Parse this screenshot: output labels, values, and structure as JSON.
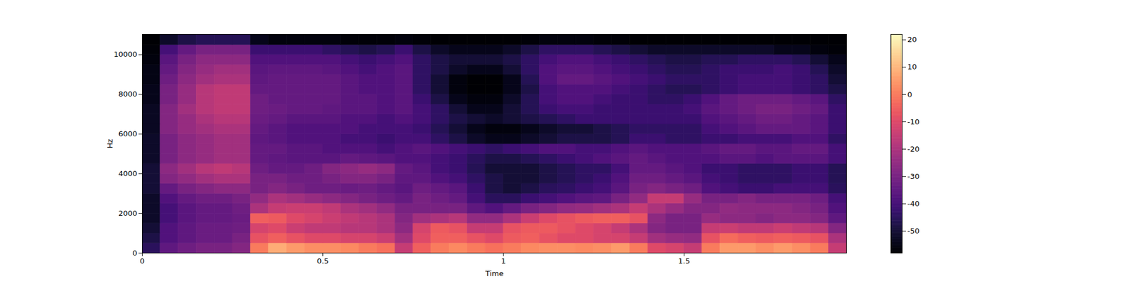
{
  "chart_data": {
    "type": "heatmap",
    "x_label": "Time",
    "y_label": "Hz",
    "xlim": [
      0,
      1.95
    ],
    "xticks": [
      0,
      0.5,
      1,
      1.5
    ],
    "ylim": [
      0,
      11025
    ],
    "yticks": [
      0,
      2000,
      4000,
      6000,
      8000,
      10000
    ],
    "xbins": [
      0,
      0.05,
      0.1,
      0.15,
      0.2,
      0.25,
      0.3,
      0.35,
      0.4,
      0.45,
      0.5,
      0.55,
      0.6,
      0.65,
      0.7,
      0.75,
      0.8,
      0.85,
      0.9,
      0.95,
      1.0,
      1.05,
      1.1,
      1.15,
      1.2,
      1.25,
      1.3,
      1.35,
      1.4,
      1.45,
      1.5,
      1.55,
      1.6,
      1.65,
      1.7,
      1.75,
      1.8,
      1.85,
      1.9,
      1.95
    ],
    "ybins": [
      0,
      500,
      1000,
      1500,
      2000,
      2500,
      3000,
      3500,
      4000,
      4500,
      5000,
      5500,
      6000,
      6500,
      7000,
      7500,
      8000,
      8500,
      9000,
      9500,
      10000,
      10500,
      11025
    ],
    "cells": [
      [
        -45,
        -35,
        -32,
        -30,
        -30,
        -28,
        0,
        8,
        5,
        3,
        3,
        2,
        0,
        -2,
        -15,
        -5,
        0,
        2,
        0,
        -2,
        0,
        2,
        3,
        3,
        2,
        3,
        5,
        0,
        -10,
        -12,
        -15,
        0,
        5,
        5,
        3,
        5,
        3,
        0,
        -15
      ],
      [
        -48,
        -38,
        -35,
        -33,
        -33,
        -30,
        -8,
        -5,
        -8,
        -10,
        -10,
        -12,
        -12,
        -14,
        -22,
        -10,
        -5,
        -5,
        -8,
        -10,
        -6,
        -5,
        -8,
        -10,
        -10,
        -12,
        -12,
        -15,
        -22,
        -24,
        -25,
        -8,
        -3,
        -5,
        -6,
        -5,
        -6,
        -8,
        -20
      ],
      [
        -50,
        -38,
        -35,
        -33,
        -33,
        -32,
        -12,
        -10,
        -14,
        -16,
        -16,
        -18,
        -18,
        -20,
        -26,
        -12,
        -6,
        -8,
        -15,
        -15,
        -8,
        -6,
        -6,
        -8,
        -10,
        -12,
        -15,
        -20,
        -28,
        -30,
        -30,
        -15,
        -14,
        -16,
        -16,
        -14,
        -16,
        -18,
        -28
      ],
      [
        -52,
        -40,
        -36,
        -34,
        -34,
        -33,
        -5,
        -6,
        -10,
        -12,
        -14,
        -16,
        -18,
        -20,
        -28,
        -22,
        -20,
        -18,
        -25,
        -25,
        -20,
        -14,
        -10,
        -8,
        -6,
        -5,
        -5,
        -8,
        -26,
        -30,
        -30,
        -24,
        -26,
        -26,
        -28,
        -26,
        -26,
        -28,
        -35
      ],
      [
        -52,
        -40,
        -36,
        -34,
        -34,
        -32,
        -20,
        -15,
        -14,
        -14,
        -16,
        -20,
        -22,
        -25,
        -30,
        -30,
        -30,
        -30,
        -35,
        -38,
        -34,
        -30,
        -28,
        -25,
        -24,
        -22,
        -20,
        -15,
        -20,
        -24,
        -28,
        -28,
        -25,
        -26,
        -26,
        -26,
        -28,
        -30,
        -38
      ],
      [
        -52,
        -38,
        -34,
        -32,
        -32,
        -30,
        -25,
        -20,
        -22,
        -24,
        -26,
        -28,
        -30,
        -32,
        -34,
        -30,
        -32,
        -34,
        -40,
        -45,
        -45,
        -42,
        -40,
        -38,
        -36,
        -35,
        -30,
        -25,
        -15,
        -15,
        -24,
        -30,
        -30,
        -28,
        -30,
        -30,
        -30,
        -32,
        -40
      ],
      [
        -50,
        -34,
        -30,
        -28,
        -26,
        -26,
        -30,
        -28,
        -30,
        -32,
        -32,
        -33,
        -32,
        -34,
        -36,
        -32,
        -34,
        -36,
        -42,
        -48,
        -50,
        -48,
        -45,
        -44,
        -42,
        -40,
        -36,
        -30,
        -28,
        -30,
        -32,
        -38,
        -40,
        -42,
        -42,
        -40,
        -40,
        -40,
        -45
      ],
      [
        -50,
        -28,
        -25,
        -22,
        -20,
        -20,
        -30,
        -30,
        -32,
        -32,
        -30,
        -28,
        -28,
        -30,
        -35,
        -35,
        -38,
        -40,
        -44,
        -48,
        -50,
        -50,
        -48,
        -46,
        -44,
        -42,
        -38,
        -32,
        -32,
        -34,
        -36,
        -40,
        -42,
        -44,
        -44,
        -44,
        -42,
        -42,
        -46
      ],
      [
        -50,
        -26,
        -22,
        -18,
        -16,
        -18,
        -32,
        -34,
        -34,
        -32,
        -28,
        -26,
        -24,
        -26,
        -34,
        -36,
        -40,
        -42,
        -46,
        -50,
        -50,
        -50,
        -48,
        -46,
        -44,
        -44,
        -40,
        -34,
        -34,
        -36,
        -38,
        -42,
        -42,
        -44,
        -44,
        -44,
        -42,
        -42,
        -46
      ],
      [
        -52,
        -30,
        -26,
        -24,
        -22,
        -22,
        -34,
        -35,
        -36,
        -36,
        -36,
        -34,
        -35,
        -36,
        -38,
        -38,
        -40,
        -42,
        -45,
        -48,
        -48,
        -46,
        -44,
        -42,
        -40,
        -38,
        -36,
        -34,
        -36,
        -38,
        -38,
        -38,
        -36,
        -36,
        -38,
        -36,
        -36,
        -36,
        -40
      ],
      [
        -52,
        -30,
        -26,
        -24,
        -22,
        -22,
        -34,
        -34,
        -36,
        -36,
        -38,
        -38,
        -38,
        -40,
        -38,
        -36,
        -38,
        -40,
        -42,
        -44,
        -42,
        -40,
        -38,
        -38,
        -40,
        -40,
        -38,
        -36,
        -38,
        -38,
        -38,
        -36,
        -34,
        -34,
        -36,
        -36,
        -34,
        -34,
        -40
      ],
      [
        -52,
        -30,
        -26,
        -24,
        -22,
        -22,
        -35,
        -36,
        -38,
        -38,
        -38,
        -40,
        -40,
        -42,
        -40,
        -40,
        -44,
        -48,
        -52,
        -54,
        -54,
        -52,
        -50,
        -48,
        -48,
        -48,
        -46,
        -42,
        -42,
        -44,
        -44,
        -42,
        -42,
        -40,
        -40,
        -40,
        -38,
        -38,
        -44
      ],
      [
        -53,
        -28,
        -24,
        -22,
        -20,
        -20,
        -34,
        -36,
        -38,
        -38,
        -38,
        -38,
        -40,
        -40,
        -40,
        -42,
        -46,
        -50,
        -54,
        -56,
        -56,
        -54,
        -52,
        -50,
        -50,
        -48,
        -46,
        -44,
        -44,
        -44,
        -44,
        -40,
        -38,
        -36,
        -34,
        -34,
        -34,
        -36,
        -42
      ],
      [
        -53,
        -28,
        -24,
        -20,
        -18,
        -18,
        -33,
        -34,
        -36,
        -36,
        -36,
        -38,
        -38,
        -40,
        -38,
        -40,
        -44,
        -48,
        -50,
        -52,
        -50,
        -48,
        -46,
        -44,
        -42,
        -42,
        -42,
        -42,
        -42,
        -42,
        -42,
        -38,
        -36,
        -34,
        -32,
        -32,
        -34,
        -36,
        -42
      ],
      [
        -53,
        -28,
        -22,
        -18,
        -16,
        -16,
        -32,
        -33,
        -34,
        -34,
        -35,
        -36,
        -36,
        -38,
        -36,
        -40,
        -44,
        -50,
        -54,
        -54,
        -50,
        -46,
        -42,
        -40,
        -40,
        -42,
        -42,
        -42,
        -42,
        -42,
        -40,
        -36,
        -34,
        -32,
        -30,
        -30,
        -32,
        -34,
        -42
      ],
      [
        -54,
        -30,
        -24,
        -18,
        -16,
        -16,
        -32,
        -34,
        -34,
        -34,
        -34,
        -36,
        -36,
        -38,
        -36,
        -42,
        -48,
        -54,
        -56,
        -56,
        -52,
        -46,
        -40,
        -38,
        -38,
        -40,
        -42,
        -42,
        -44,
        -44,
        -42,
        -38,
        -34,
        -32,
        -32,
        -32,
        -34,
        -36,
        -44
      ],
      [
        -54,
        -30,
        -24,
        -18,
        -16,
        -16,
        -34,
        -34,
        -34,
        -34,
        -34,
        -36,
        -38,
        -38,
        -36,
        -44,
        -50,
        -56,
        -58,
        -58,
        -54,
        -48,
        -40,
        -38,
        -38,
        -38,
        -40,
        -42,
        -44,
        -46,
        -46,
        -44,
        -42,
        -40,
        -40,
        -40,
        -42,
        -44,
        -48
      ],
      [
        -55,
        -32,
        -26,
        -22,
        -20,
        -20,
        -35,
        -34,
        -34,
        -34,
        -34,
        -36,
        -38,
        -38,
        -36,
        -44,
        -50,
        -56,
        -58,
        -58,
        -54,
        -46,
        -38,
        -34,
        -34,
        -36,
        -38,
        -40,
        -42,
        -44,
        -44,
        -44,
        -42,
        -40,
        -40,
        -40,
        -42,
        -44,
        -50
      ],
      [
        -55,
        -34,
        -28,
        -24,
        -22,
        -22,
        -36,
        -35,
        -35,
        -35,
        -36,
        -38,
        -40,
        -38,
        -36,
        -44,
        -48,
        -52,
        -54,
        -54,
        -50,
        -44,
        -38,
        -36,
        -36,
        -38,
        -40,
        -42,
        -44,
        -46,
        -46,
        -44,
        -42,
        -42,
        -42,
        -40,
        -42,
        -46,
        -52
      ],
      [
        -56,
        -36,
        -30,
        -26,
        -26,
        -26,
        -38,
        -38,
        -38,
        -38,
        -38,
        -40,
        -42,
        -40,
        -38,
        -44,
        -48,
        -50,
        -50,
        -50,
        -48,
        -44,
        -40,
        -38,
        -38,
        -40,
        -42,
        -44,
        -46,
        -48,
        -48,
        -46,
        -46,
        -44,
        -44,
        -44,
        -46,
        -50,
        -54
      ],
      [
        -57,
        -40,
        -34,
        -30,
        -30,
        -30,
        -42,
        -42,
        -42,
        -42,
        -44,
        -46,
        -48,
        -46,
        -42,
        -48,
        -52,
        -54,
        -54,
        -54,
        -52,
        -48,
        -44,
        -44,
        -44,
        -46,
        -48,
        -50,
        -52,
        -52,
        -52,
        -52,
        -52,
        -52,
        -52,
        -54,
        -54,
        -56,
        -57
      ],
      [
        -58,
        -52,
        -48,
        -46,
        -46,
        -46,
        -54,
        -56,
        -56,
        -56,
        -56,
        -57,
        -57,
        -57,
        -56,
        -57,
        -58,
        -58,
        -58,
        -58,
        -58,
        -57,
        -56,
        -56,
        -56,
        -57,
        -57,
        -58,
        -58,
        -58,
        -58,
        -58,
        -58,
        -58,
        -58,
        -58,
        -58,
        -58,
        -58
      ]
    ],
    "colorbar": {
      "range": [
        -58,
        22
      ],
      "ticks": [
        -50,
        -40,
        -30,
        -20,
        -10,
        0,
        10,
        20
      ]
    },
    "color": "magma"
  }
}
